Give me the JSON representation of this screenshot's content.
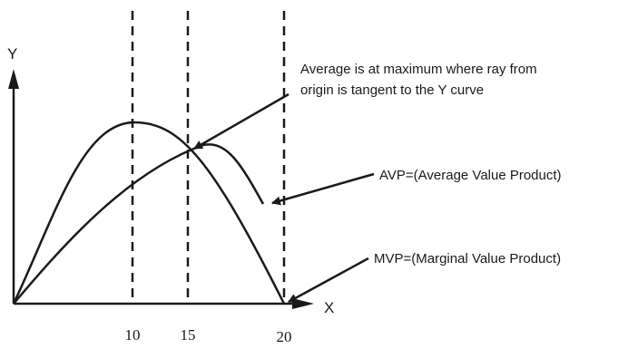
{
  "axes": {
    "y_label": "Y",
    "x_label": "X",
    "x_ticks": [
      "10",
      "15",
      "20"
    ]
  },
  "annotations": {
    "tangent_note_line1": "Average is at maximum where ray from",
    "tangent_note_line2": "origin is tangent to the Y curve",
    "avp_label": "AVP=(Average Value Product)",
    "mvp_label": "MVP=(Marginal Value Product)"
  },
  "colors": {
    "ink": "#1a1a1a",
    "background": "#ffffff"
  }
}
